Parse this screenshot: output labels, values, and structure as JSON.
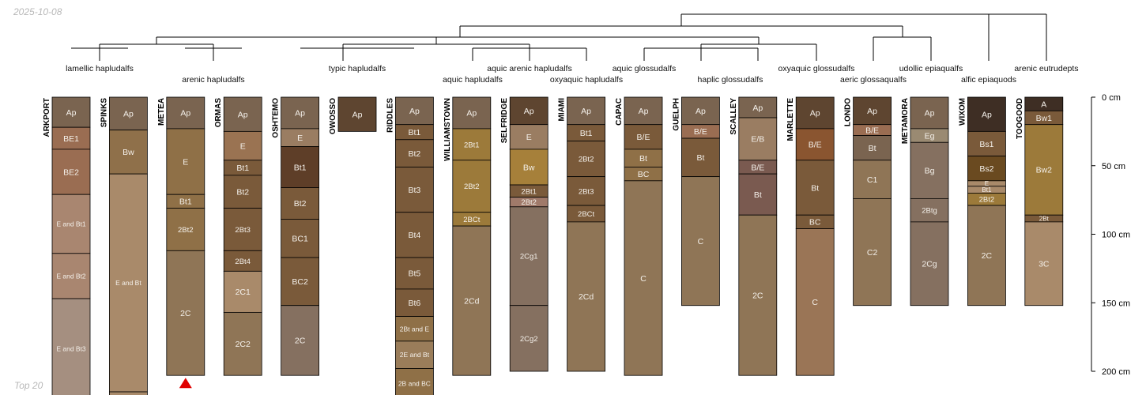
{
  "header": {
    "date": "2025-10-08"
  },
  "footer": {
    "label": "Top 20"
  },
  "chart_data": {
    "type": "soil-profile-sketch",
    "depth_units": "cm",
    "depth_axis": {
      "ticks": [
        0,
        50,
        100,
        150,
        200
      ],
      "unit_label": "cm"
    },
    "taxa_labels": [
      {
        "id": "lamellic",
        "text": "lamellic hapludalfs"
      },
      {
        "id": "arenic",
        "text": "arenic hapludalfs"
      },
      {
        "id": "typic",
        "text": "typic hapludalfs"
      },
      {
        "id": "aquic_arenic",
        "text": "aquic arenic hapludalfs"
      },
      {
        "id": "aquic_hap",
        "text": "aquic hapludalfs"
      },
      {
        "id": "oxyaquic_hap",
        "text": "oxyaquic hapludalfs"
      },
      {
        "id": "aquic_gloss",
        "text": "aquic glossudalfs"
      },
      {
        "id": "haplic_gloss",
        "text": "haplic glossudalfs"
      },
      {
        "id": "oxyaquic_gloss",
        "text": "oxyaquic glossudalfs"
      },
      {
        "id": "aeric",
        "text": "aeric glossaqualfs"
      },
      {
        "id": "udollic",
        "text": "udollic epiaqualfs"
      },
      {
        "id": "alfic",
        "text": "alfic epiaquods"
      },
      {
        "id": "arenic_eutr",
        "text": "arenic eutrudepts"
      }
    ],
    "profiles": [
      {
        "name": "ARKPORT",
        "total_depth": 220,
        "horizons": [
          {
            "name": "Ap",
            "top": 0,
            "bottom": 22,
            "color": "#7a6450"
          },
          {
            "name": "BE1",
            "top": 22,
            "bottom": 38,
            "color": "#9a6d52"
          },
          {
            "name": "BE2",
            "top": 38,
            "bottom": 71,
            "color": "#9a6d52"
          },
          {
            "name": "E and Bt1",
            "top": 71,
            "bottom": 114,
            "color": "#a98670"
          },
          {
            "name": "E and Bt2",
            "top": 114,
            "bottom": 147,
            "color": "#a98670"
          },
          {
            "name": "E and Bt3",
            "top": 147,
            "bottom": 220,
            "color": "#a58f80"
          }
        ]
      },
      {
        "name": "SPINKS",
        "total_depth": 220,
        "horizons": [
          {
            "name": "Ap",
            "top": 0,
            "bottom": 24,
            "color": "#7a6450"
          },
          {
            "name": "Bw",
            "top": 24,
            "bottom": 56,
            "color": "#8f704a"
          },
          {
            "name": "E and Bt",
            "top": 56,
            "bottom": 215,
            "color": "#a98a6a"
          },
          {
            "name": "",
            "top": 215,
            "bottom": 220,
            "color": "#a98a6a"
          }
        ]
      },
      {
        "name": "METEA",
        "total_depth": 203,
        "horizons": [
          {
            "name": "Ap",
            "top": 0,
            "bottom": 23,
            "color": "#7a6450"
          },
          {
            "name": "E",
            "top": 23,
            "bottom": 71,
            "color": "#8f7047"
          },
          {
            "name": "Bt1",
            "top": 71,
            "bottom": 81,
            "color": "#8f7047"
          },
          {
            "name": "2Bt2",
            "top": 81,
            "bottom": 112,
            "color": "#8f7047"
          },
          {
            "name": "2C",
            "top": 112,
            "bottom": 203,
            "color": "#8f7556"
          }
        ]
      },
      {
        "name": "ORMAS",
        "total_depth": 203,
        "horizons": [
          {
            "name": "Ap",
            "top": 0,
            "bottom": 25,
            "color": "#7a6450"
          },
          {
            "name": "E",
            "top": 25,
            "bottom": 46,
            "color": "#9a7352"
          },
          {
            "name": "Bt1",
            "top": 46,
            "bottom": 57,
            "color": "#7a5a3a"
          },
          {
            "name": "Bt2",
            "top": 57,
            "bottom": 81,
            "color": "#7a5a3a"
          },
          {
            "name": "2Bt3",
            "top": 81,
            "bottom": 112,
            "color": "#7a5a3a"
          },
          {
            "name": "2Bt4",
            "top": 112,
            "bottom": 127,
            "color": "#7a5a3a"
          },
          {
            "name": "2C1",
            "top": 127,
            "bottom": 157,
            "color": "#a98a6a"
          },
          {
            "name": "2C2",
            "top": 157,
            "bottom": 203,
            "color": "#8f7556"
          }
        ]
      },
      {
        "name": "OSHTEMO",
        "total_depth": 203,
        "horizons": [
          {
            "name": "Ap",
            "top": 0,
            "bottom": 23,
            "color": "#7a6450"
          },
          {
            "name": "E",
            "top": 23,
            "bottom": 36,
            "color": "#9a7d62"
          },
          {
            "name": "Bt1",
            "top": 36,
            "bottom": 66,
            "color": "#5e3e28"
          },
          {
            "name": "Bt2",
            "top": 66,
            "bottom": 89,
            "color": "#7a5a3a"
          },
          {
            "name": "BC1",
            "top": 89,
            "bottom": 117,
            "color": "#7a5a3a"
          },
          {
            "name": "BC2",
            "top": 117,
            "bottom": 152,
            "color": "#7a5a3a"
          },
          {
            "name": "2C",
            "top": 152,
            "bottom": 203,
            "color": "#857060"
          }
        ]
      },
      {
        "name": "OWOSSO",
        "total_depth": 25,
        "horizons": [
          {
            "name": "Ap",
            "top": 0,
            "bottom": 25,
            "color": "#5e4530"
          }
        ]
      },
      {
        "name": "RIDDLES",
        "total_depth": 220,
        "horizons": [
          {
            "name": "Ap",
            "top": 0,
            "bottom": 20,
            "color": "#7a6450"
          },
          {
            "name": "Bt1",
            "top": 20,
            "bottom": 31,
            "color": "#7a5a3a"
          },
          {
            "name": "Bt2",
            "top": 31,
            "bottom": 51,
            "color": "#7a5a3a"
          },
          {
            "name": "Bt3",
            "top": 51,
            "bottom": 84,
            "color": "#7a5a3a"
          },
          {
            "name": "Bt4",
            "top": 84,
            "bottom": 117,
            "color": "#7a5a3a"
          },
          {
            "name": "Bt5",
            "top": 117,
            "bottom": 140,
            "color": "#7a5a3a"
          },
          {
            "name": "Bt6",
            "top": 140,
            "bottom": 160,
            "color": "#7a5a3a"
          },
          {
            "name": "2Bt and E",
            "top": 160,
            "bottom": 178,
            "color": "#8f7047"
          },
          {
            "name": "2E and Bt",
            "top": 178,
            "bottom": 198,
            "color": "#9a7d5a"
          },
          {
            "name": "2B and BC",
            "top": 198,
            "bottom": 220,
            "color": "#8f7047"
          }
        ]
      },
      {
        "name": "WILLIAMSTOWN",
        "total_depth": 203,
        "horizons": [
          {
            "name": "Ap",
            "top": 0,
            "bottom": 23,
            "color": "#7a6450"
          },
          {
            "name": "2Bt1",
            "top": 23,
            "bottom": 46,
            "color": "#9c7a3a"
          },
          {
            "name": "2Bt2",
            "top": 46,
            "bottom": 84,
            "color": "#9c7a3a"
          },
          {
            "name": "2BCt",
            "top": 84,
            "bottom": 94,
            "color": "#9c7a3a"
          },
          {
            "name": "2Cd",
            "top": 94,
            "bottom": 203,
            "color": "#8f7556"
          }
        ]
      },
      {
        "name": "SELFRIDGE",
        "total_depth": 200,
        "horizons": [
          {
            "name": "Ap",
            "top": 0,
            "bottom": 20,
            "color": "#5e4530"
          },
          {
            "name": "E",
            "top": 20,
            "bottom": 38,
            "color": "#9a7d62"
          },
          {
            "name": "Bw",
            "top": 38,
            "bottom": 64,
            "color": "#a6803a"
          },
          {
            "name": "2Bt1",
            "top": 64,
            "bottom": 73,
            "color": "#7a5a3a"
          },
          {
            "name": "2Bt2",
            "top": 73,
            "bottom": 80,
            "color": "#a07a6a"
          },
          {
            "name": "2Cg1",
            "top": 80,
            "bottom": 152,
            "color": "#857060"
          },
          {
            "name": "2Cg2",
            "top": 152,
            "bottom": 200,
            "color": "#857060"
          }
        ]
      },
      {
        "name": "MIAMI",
        "total_depth": 200,
        "horizons": [
          {
            "name": "Ap",
            "top": 0,
            "bottom": 20,
            "color": "#7a6450"
          },
          {
            "name": "Bt1",
            "top": 20,
            "bottom": 32,
            "color": "#7a5a3a"
          },
          {
            "name": "2Bt2",
            "top": 32,
            "bottom": 58,
            "color": "#7a5a3a"
          },
          {
            "name": "2Bt3",
            "top": 58,
            "bottom": 79,
            "color": "#7a5a3a"
          },
          {
            "name": "2BCt",
            "top": 79,
            "bottom": 91,
            "color": "#7a5a3a"
          },
          {
            "name": "2Cd",
            "top": 91,
            "bottom": 200,
            "color": "#8f7556"
          }
        ]
      },
      {
        "name": "CAPAC",
        "total_depth": 203,
        "horizons": [
          {
            "name": "Ap",
            "top": 0,
            "bottom": 20,
            "color": "#7a6450"
          },
          {
            "name": "B/E",
            "top": 20,
            "bottom": 38,
            "color": "#7a5a3a"
          },
          {
            "name": "Bt",
            "top": 38,
            "bottom": 51,
            "color": "#8f7047"
          },
          {
            "name": "BC",
            "top": 51,
            "bottom": 61,
            "color": "#8f7047"
          },
          {
            "name": "C",
            "top": 61,
            "bottom": 203,
            "color": "#8f7556"
          }
        ]
      },
      {
        "name": "GUELPH",
        "total_depth": 152,
        "horizons": [
          {
            "name": "Ap",
            "top": 0,
            "bottom": 20,
            "color": "#7a6450"
          },
          {
            "name": "B/E",
            "top": 20,
            "bottom": 30,
            "color": "#9a6d52"
          },
          {
            "name": "Bt",
            "top": 30,
            "bottom": 58,
            "color": "#7a5a3a"
          },
          {
            "name": "C",
            "top": 58,
            "bottom": 152,
            "color": "#8f7556"
          }
        ]
      },
      {
        "name": "SCALLEY",
        "total_depth": 203,
        "horizons": [
          {
            "name": "Ap",
            "top": 0,
            "bottom": 15,
            "color": "#7a6450"
          },
          {
            "name": "E/B",
            "top": 15,
            "bottom": 46,
            "color": "#9a7d62"
          },
          {
            "name": "B/E",
            "top": 46,
            "bottom": 56,
            "color": "#7a5a50"
          },
          {
            "name": "Bt",
            "top": 56,
            "bottom": 86,
            "color": "#7a5a50"
          },
          {
            "name": "2C",
            "top": 86,
            "bottom": 203,
            "color": "#8f7556"
          }
        ]
      },
      {
        "name": "MARLETTE",
        "total_depth": 203,
        "horizons": [
          {
            "name": "Ap",
            "top": 0,
            "bottom": 23,
            "color": "#5e4530"
          },
          {
            "name": "B/E",
            "top": 23,
            "bottom": 46,
            "color": "#8a5530"
          },
          {
            "name": "Bt",
            "top": 46,
            "bottom": 86,
            "color": "#7a5a3a"
          },
          {
            "name": "BC",
            "top": 86,
            "bottom": 96,
            "color": "#7a5a3a"
          },
          {
            "name": "C",
            "top": 96,
            "bottom": 203,
            "color": "#9a7556"
          }
        ]
      },
      {
        "name": "LONDO",
        "total_depth": 152,
        "horizons": [
          {
            "name": "Ap",
            "top": 0,
            "bottom": 20,
            "color": "#5e4530"
          },
          {
            "name": "B/E",
            "top": 20,
            "bottom": 28,
            "color": "#9a6d52"
          },
          {
            "name": "Bt",
            "top": 28,
            "bottom": 46,
            "color": "#7a6450"
          },
          {
            "name": "C1",
            "top": 46,
            "bottom": 74,
            "color": "#8f7556"
          },
          {
            "name": "C2",
            "top": 74,
            "bottom": 152,
            "color": "#8f7556"
          }
        ]
      },
      {
        "name": "METAMORA",
        "total_depth": 152,
        "horizons": [
          {
            "name": "Ap",
            "top": 0,
            "bottom": 23,
            "color": "#7a6450"
          },
          {
            "name": "Eg",
            "top": 23,
            "bottom": 33,
            "color": "#9a8a72"
          },
          {
            "name": "Bg",
            "top": 33,
            "bottom": 74,
            "color": "#857060"
          },
          {
            "name": "2Btg",
            "top": 74,
            "bottom": 91,
            "color": "#857060"
          },
          {
            "name": "2Cg",
            "top": 91,
            "bottom": 152,
            "color": "#857060"
          }
        ]
      },
      {
        "name": "WIXOM",
        "total_depth": 152,
        "horizons": [
          {
            "name": "Ap",
            "top": 0,
            "bottom": 25,
            "color": "#3e2e24"
          },
          {
            "name": "Bs1",
            "top": 25,
            "bottom": 43,
            "color": "#7a5a3a"
          },
          {
            "name": "Bs2",
            "top": 43,
            "bottom": 61,
            "color": "#6a4a20"
          },
          {
            "name": "E",
            "top": 61,
            "bottom": 65,
            "color": "#a98a6a"
          },
          {
            "name": "Bt1",
            "top": 65,
            "bottom": 70,
            "color": "#a98a6a"
          },
          {
            "name": "2Bt2",
            "top": 70,
            "bottom": 79,
            "color": "#9c7a3a"
          },
          {
            "name": "2C",
            "top": 79,
            "bottom": 152,
            "color": "#8f7556"
          }
        ]
      },
      {
        "name": "TOOGOOD",
        "total_depth": 152,
        "horizons": [
          {
            "name": "A",
            "top": 0,
            "bottom": 10,
            "color": "#3e2e24"
          },
          {
            "name": "Bw1",
            "top": 10,
            "bottom": 20,
            "color": "#7a5a3a"
          },
          {
            "name": "Bw2",
            "top": 20,
            "bottom": 86,
            "color": "#9c7a3a"
          },
          {
            "name": "2Bt",
            "top": 86,
            "bottom": 91,
            "color": "#7a5a3a"
          },
          {
            "name": "3C",
            "top": 91,
            "bottom": 152,
            "color": "#a98a6a"
          }
        ]
      }
    ],
    "markers": [
      {
        "profile": "METEA",
        "shape": "triangle",
        "color": "#e00000"
      }
    ]
  }
}
